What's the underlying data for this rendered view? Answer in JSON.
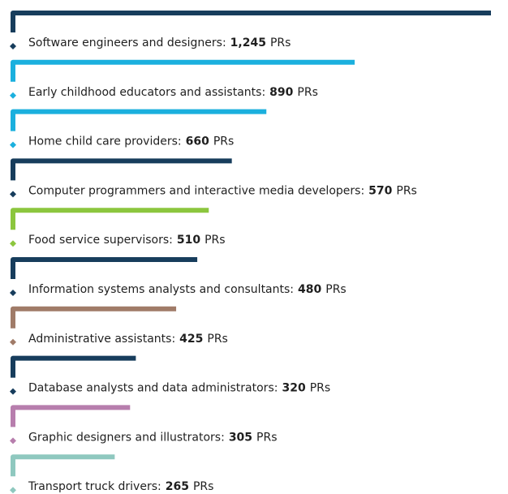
{
  "chart_data": {
    "type": "bar",
    "categories": [
      "Software engineers and designers",
      "Early childhood educators and assistants",
      "Home child care providers",
      "Computer programmers and interactive media developers",
      "Food service supervisors",
      "Information systems analysts and consultants",
      "Administrative assistants",
      "Database analysts and data administrators",
      "Graphic designers and illustrators",
      "Transport truck drivers"
    ],
    "values": [
      1245,
      890,
      660,
      570,
      510,
      480,
      425,
      320,
      305,
      265
    ],
    "value_labels": [
      "1,245",
      "890",
      "660",
      "570",
      "510",
      "480",
      "425",
      "320",
      "305",
      "265"
    ],
    "separator": ":",
    "unit": "PRs",
    "colors": [
      "#173d5c",
      "#1bb0de",
      "#1bb0de",
      "#173d5c",
      "#8cc63e",
      "#173d5c",
      "#a07b68",
      "#173d5c",
      "#b77ead",
      "#8fc8bf"
    ]
  }
}
